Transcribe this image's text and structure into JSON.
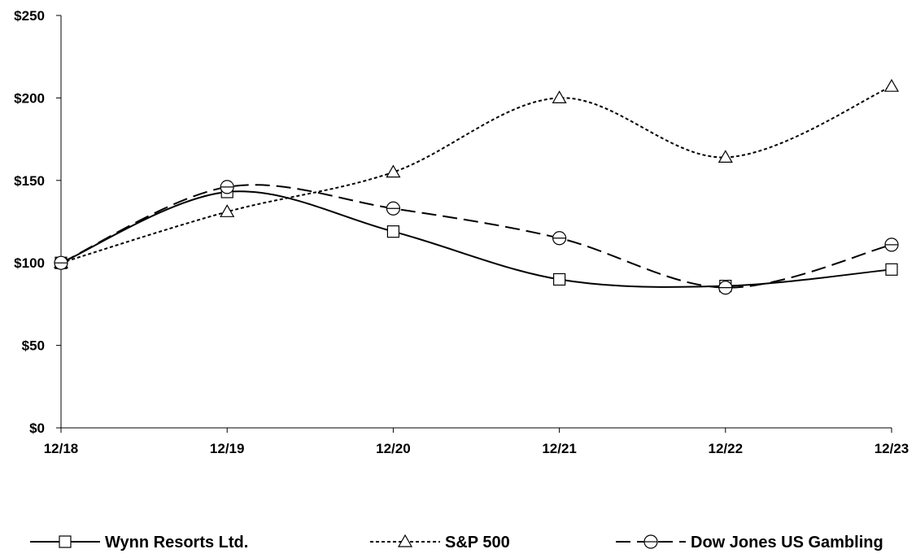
{
  "chart_data": {
    "type": "line",
    "title": "",
    "xlabel": "",
    "ylabel": "",
    "categories": [
      "12/18",
      "12/19",
      "12/20",
      "12/21",
      "12/22",
      "12/23"
    ],
    "ylim": [
      0,
      250
    ],
    "yticks": [
      0,
      50,
      100,
      150,
      200,
      250
    ],
    "ytick_labels": [
      "$0",
      "$50",
      "$100",
      "$150",
      "$200",
      "$250"
    ],
    "grid": false,
    "legend_position": "bottom",
    "series": [
      {
        "name": "Wynn Resorts Ltd.",
        "values": [
          100,
          143,
          119,
          90,
          86,
          96
        ],
        "line_style": "solid",
        "marker": "square",
        "color": "#000000"
      },
      {
        "name": "S&P 500",
        "values": [
          100,
          131,
          155,
          200,
          164,
          207
        ],
        "line_style": "dotted",
        "marker": "triangle",
        "color": "#000000"
      },
      {
        "name": "Dow Jones US Gambling",
        "values": [
          100,
          146,
          133,
          115,
          85,
          111
        ],
        "line_style": "dashed",
        "marker": "circle",
        "color": "#000000"
      }
    ]
  }
}
